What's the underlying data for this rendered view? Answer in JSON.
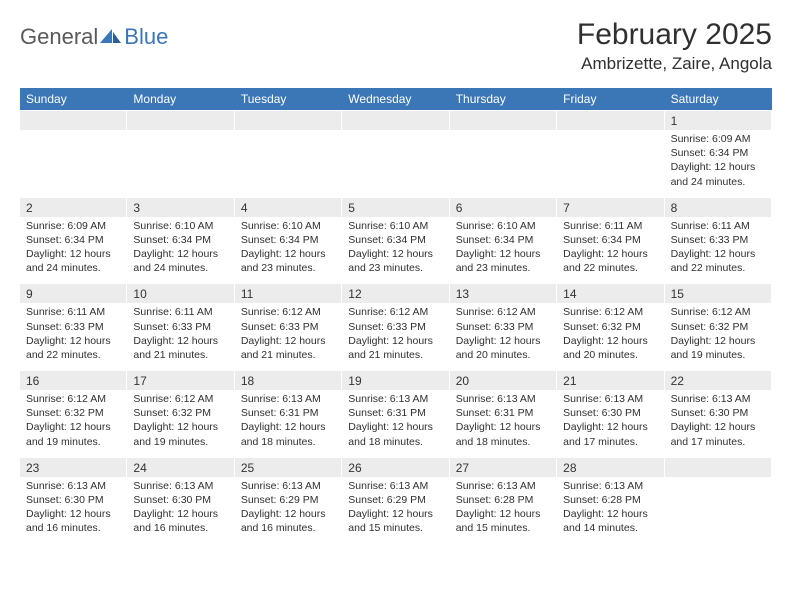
{
  "logo": {
    "part1": "General",
    "part2": "Blue"
  },
  "title": "February 2025",
  "location": "Ambrizette, Zaire, Angola",
  "colors": {
    "header_bg": "#3b77b7",
    "daynum_bg": "#ececec",
    "text": "#303030",
    "logo_gray": "#5a5a5a",
    "logo_blue": "#3b77b7"
  },
  "weekdays": [
    "Sunday",
    "Monday",
    "Tuesday",
    "Wednesday",
    "Thursday",
    "Friday",
    "Saturday"
  ],
  "weeks": [
    [
      {
        "n": "",
        "lines": [
          "",
          "",
          "",
          ""
        ]
      },
      {
        "n": "",
        "lines": [
          "",
          "",
          "",
          ""
        ]
      },
      {
        "n": "",
        "lines": [
          "",
          "",
          "",
          ""
        ]
      },
      {
        "n": "",
        "lines": [
          "",
          "",
          "",
          ""
        ]
      },
      {
        "n": "",
        "lines": [
          "",
          "",
          "",
          ""
        ]
      },
      {
        "n": "",
        "lines": [
          "",
          "",
          "",
          ""
        ]
      },
      {
        "n": "1",
        "lines": [
          "Sunrise: 6:09 AM",
          "Sunset: 6:34 PM",
          "Daylight: 12 hours",
          "and 24 minutes."
        ]
      }
    ],
    [
      {
        "n": "2",
        "lines": [
          "Sunrise: 6:09 AM",
          "Sunset: 6:34 PM",
          "Daylight: 12 hours",
          "and 24 minutes."
        ]
      },
      {
        "n": "3",
        "lines": [
          "Sunrise: 6:10 AM",
          "Sunset: 6:34 PM",
          "Daylight: 12 hours",
          "and 24 minutes."
        ]
      },
      {
        "n": "4",
        "lines": [
          "Sunrise: 6:10 AM",
          "Sunset: 6:34 PM",
          "Daylight: 12 hours",
          "and 23 minutes."
        ]
      },
      {
        "n": "5",
        "lines": [
          "Sunrise: 6:10 AM",
          "Sunset: 6:34 PM",
          "Daylight: 12 hours",
          "and 23 minutes."
        ]
      },
      {
        "n": "6",
        "lines": [
          "Sunrise: 6:10 AM",
          "Sunset: 6:34 PM",
          "Daylight: 12 hours",
          "and 23 minutes."
        ]
      },
      {
        "n": "7",
        "lines": [
          "Sunrise: 6:11 AM",
          "Sunset: 6:34 PM",
          "Daylight: 12 hours",
          "and 22 minutes."
        ]
      },
      {
        "n": "8",
        "lines": [
          "Sunrise: 6:11 AM",
          "Sunset: 6:33 PM",
          "Daylight: 12 hours",
          "and 22 minutes."
        ]
      }
    ],
    [
      {
        "n": "9",
        "lines": [
          "Sunrise: 6:11 AM",
          "Sunset: 6:33 PM",
          "Daylight: 12 hours",
          "and 22 minutes."
        ]
      },
      {
        "n": "10",
        "lines": [
          "Sunrise: 6:11 AM",
          "Sunset: 6:33 PM",
          "Daylight: 12 hours",
          "and 21 minutes."
        ]
      },
      {
        "n": "11",
        "lines": [
          "Sunrise: 6:12 AM",
          "Sunset: 6:33 PM",
          "Daylight: 12 hours",
          "and 21 minutes."
        ]
      },
      {
        "n": "12",
        "lines": [
          "Sunrise: 6:12 AM",
          "Sunset: 6:33 PM",
          "Daylight: 12 hours",
          "and 21 minutes."
        ]
      },
      {
        "n": "13",
        "lines": [
          "Sunrise: 6:12 AM",
          "Sunset: 6:33 PM",
          "Daylight: 12 hours",
          "and 20 minutes."
        ]
      },
      {
        "n": "14",
        "lines": [
          "Sunrise: 6:12 AM",
          "Sunset: 6:32 PM",
          "Daylight: 12 hours",
          "and 20 minutes."
        ]
      },
      {
        "n": "15",
        "lines": [
          "Sunrise: 6:12 AM",
          "Sunset: 6:32 PM",
          "Daylight: 12 hours",
          "and 19 minutes."
        ]
      }
    ],
    [
      {
        "n": "16",
        "lines": [
          "Sunrise: 6:12 AM",
          "Sunset: 6:32 PM",
          "Daylight: 12 hours",
          "and 19 minutes."
        ]
      },
      {
        "n": "17",
        "lines": [
          "Sunrise: 6:12 AM",
          "Sunset: 6:32 PM",
          "Daylight: 12 hours",
          "and 19 minutes."
        ]
      },
      {
        "n": "18",
        "lines": [
          "Sunrise: 6:13 AM",
          "Sunset: 6:31 PM",
          "Daylight: 12 hours",
          "and 18 minutes."
        ]
      },
      {
        "n": "19",
        "lines": [
          "Sunrise: 6:13 AM",
          "Sunset: 6:31 PM",
          "Daylight: 12 hours",
          "and 18 minutes."
        ]
      },
      {
        "n": "20",
        "lines": [
          "Sunrise: 6:13 AM",
          "Sunset: 6:31 PM",
          "Daylight: 12 hours",
          "and 18 minutes."
        ]
      },
      {
        "n": "21",
        "lines": [
          "Sunrise: 6:13 AM",
          "Sunset: 6:30 PM",
          "Daylight: 12 hours",
          "and 17 minutes."
        ]
      },
      {
        "n": "22",
        "lines": [
          "Sunrise: 6:13 AM",
          "Sunset: 6:30 PM",
          "Daylight: 12 hours",
          "and 17 minutes."
        ]
      }
    ],
    [
      {
        "n": "23",
        "lines": [
          "Sunrise: 6:13 AM",
          "Sunset: 6:30 PM",
          "Daylight: 12 hours",
          "and 16 minutes."
        ]
      },
      {
        "n": "24",
        "lines": [
          "Sunrise: 6:13 AM",
          "Sunset: 6:30 PM",
          "Daylight: 12 hours",
          "and 16 minutes."
        ]
      },
      {
        "n": "25",
        "lines": [
          "Sunrise: 6:13 AM",
          "Sunset: 6:29 PM",
          "Daylight: 12 hours",
          "and 16 minutes."
        ]
      },
      {
        "n": "26",
        "lines": [
          "Sunrise: 6:13 AM",
          "Sunset: 6:29 PM",
          "Daylight: 12 hours",
          "and 15 minutes."
        ]
      },
      {
        "n": "27",
        "lines": [
          "Sunrise: 6:13 AM",
          "Sunset: 6:28 PM",
          "Daylight: 12 hours",
          "and 15 minutes."
        ]
      },
      {
        "n": "28",
        "lines": [
          "Sunrise: 6:13 AM",
          "Sunset: 6:28 PM",
          "Daylight: 12 hours",
          "and 14 minutes."
        ]
      },
      {
        "n": "",
        "lines": [
          "",
          "",
          "",
          ""
        ]
      }
    ]
  ]
}
